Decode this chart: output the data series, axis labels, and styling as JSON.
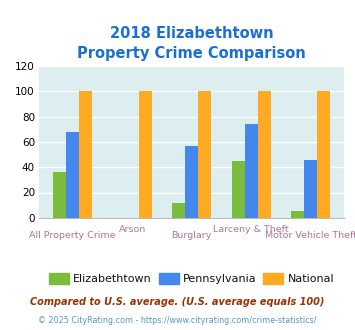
{
  "title_line1": "2018 Elizabethtown",
  "title_line2": "Property Crime Comparison",
  "categories": [
    "All Property Crime",
    "Arson",
    "Burglary",
    "Larceny & Theft",
    "Motor Vehicle Theft"
  ],
  "elizabethtown": [
    36,
    0,
    12,
    45,
    5
  ],
  "pennsylvania": [
    68,
    0,
    57,
    74,
    46
  ],
  "national": [
    100,
    100,
    100,
    100,
    100
  ],
  "color_elizabethtown": "#7cbc3c",
  "color_pennsylvania": "#4488ee",
  "color_national": "#ffaa22",
  "ylim": [
    0,
    120
  ],
  "yticks": [
    0,
    20,
    40,
    60,
    80,
    100,
    120
  ],
  "legend_labels": [
    "Elizabethtown",
    "Pennsylvania",
    "National"
  ],
  "footnote1": "Compared to U.S. average. (U.S. average equals 100)",
  "footnote2": "© 2025 CityRating.com - https://www.cityrating.com/crime-statistics/",
  "background_color": "#ddeef0",
  "title_color": "#1a6fd4",
  "xticklabel_color": "#aa7799",
  "footnote1_color": "#993300",
  "footnote2_color": "#5599bb"
}
